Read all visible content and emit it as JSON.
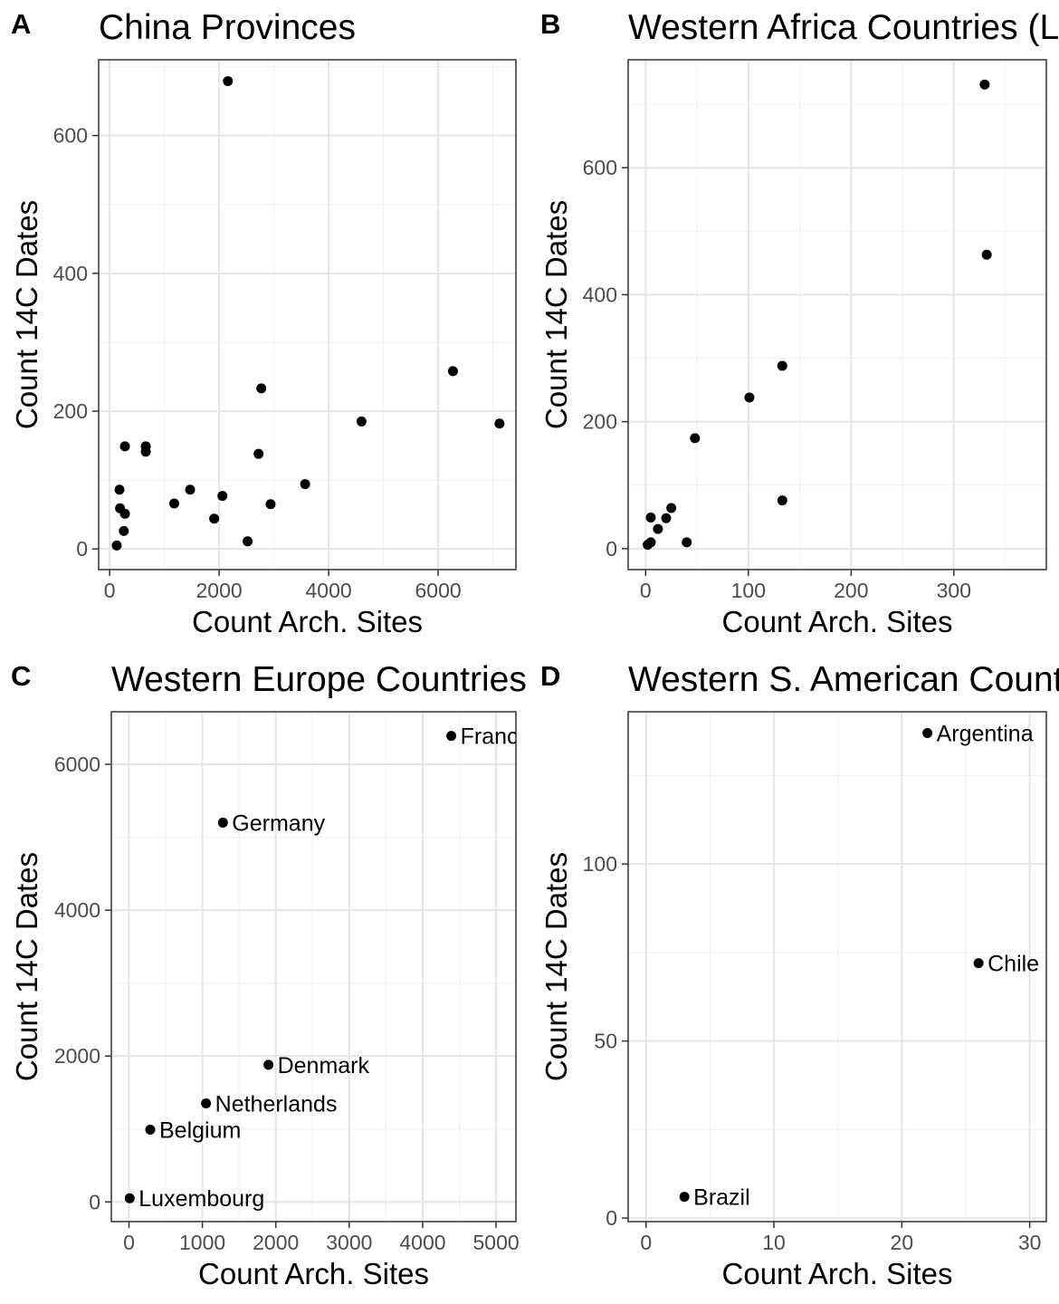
{
  "chart_data": [
    {
      "type": "scatter",
      "panel_letter": "A",
      "title": "China Provinces",
      "xlabel": "Count Arch. Sites",
      "ylabel": "Count 14C Dates",
      "xlim": [
        -200,
        7420
      ],
      "ylim": [
        -30,
        710
      ],
      "xticks": [
        0,
        2000,
        4000,
        6000
      ],
      "yticks": [
        0,
        200,
        400,
        600
      ],
      "grid": true,
      "points": [
        {
          "x": 2160,
          "y": 679
        },
        {
          "x": 6270,
          "y": 258
        },
        {
          "x": 2770,
          "y": 233
        },
        {
          "x": 4600,
          "y": 185
        },
        {
          "x": 7120,
          "y": 182
        },
        {
          "x": 280,
          "y": 149
        },
        {
          "x": 660,
          "y": 149
        },
        {
          "x": 660,
          "y": 141
        },
        {
          "x": 2720,
          "y": 138
        },
        {
          "x": 3570,
          "y": 94
        },
        {
          "x": 180,
          "y": 86
        },
        {
          "x": 1470,
          "y": 86
        },
        {
          "x": 2060,
          "y": 77
        },
        {
          "x": 1180,
          "y": 66
        },
        {
          "x": 2940,
          "y": 65
        },
        {
          "x": 190,
          "y": 59
        },
        {
          "x": 280,
          "y": 51
        },
        {
          "x": 1910,
          "y": 44
        },
        {
          "x": 260,
          "y": 26
        },
        {
          "x": 2520,
          "y": 11
        },
        {
          "x": 130,
          "y": 5
        }
      ]
    },
    {
      "type": "scatter",
      "panel_letter": "B",
      "title": "Western Africa Countries (L",
      "xlabel": "Count Arch. Sites",
      "ylabel": "Count 14C Dates",
      "xlim": [
        -17,
        390
      ],
      "ylim": [
        -33,
        770
      ],
      "xticks": [
        0,
        100,
        200,
        300
      ],
      "yticks": [
        0,
        200,
        400,
        600
      ],
      "grid": true,
      "points": [
        {
          "x": 330,
          "y": 731
        },
        {
          "x": 332,
          "y": 463
        },
        {
          "x": 133,
          "y": 288
        },
        {
          "x": 101,
          "y": 238
        },
        {
          "x": 48,
          "y": 174
        },
        {
          "x": 133,
          "y": 76
        },
        {
          "x": 25,
          "y": 64
        },
        {
          "x": 5,
          "y": 49
        },
        {
          "x": 20,
          "y": 48
        },
        {
          "x": 12,
          "y": 31
        },
        {
          "x": 40,
          "y": 10
        },
        {
          "x": 5,
          "y": 10
        },
        {
          "x": 2,
          "y": 6
        }
      ]
    },
    {
      "type": "scatter",
      "panel_letter": "C",
      "title": "Western Europe Countries",
      "xlabel": "Count Arch. Sites",
      "ylabel": "Count 14C Dates",
      "xlim": [
        -240,
        5270
      ],
      "ylim": [
        -270,
        6720
      ],
      "xticks": [
        0,
        1000,
        2000,
        3000,
        4000,
        5000
      ],
      "yticks": [
        0,
        2000,
        4000,
        6000
      ],
      "grid": true,
      "points": [
        {
          "x": 4390,
          "y": 6390,
          "label": "France"
        },
        {
          "x": 1280,
          "y": 5200,
          "label": "Germany"
        },
        {
          "x": 1900,
          "y": 1880,
          "label": "Denmark"
        },
        {
          "x": 1050,
          "y": 1350,
          "label": "Netherlands"
        },
        {
          "x": 290,
          "y": 990,
          "label": "Belgium"
        },
        {
          "x": 10,
          "y": 50,
          "label": "Luxembourg"
        }
      ]
    },
    {
      "type": "scatter",
      "panel_letter": "D",
      "title": "Western S. American Countries",
      "xlabel": "Count Arch. Sites",
      "ylabel": "Count 14C Dates",
      "xlim": [
        -1.4,
        31.3
      ],
      "ylim": [
        -1,
        143
      ],
      "xticks": [
        0,
        10,
        20,
        30
      ],
      "yticks": [
        0,
        50,
        100
      ],
      "grid": true,
      "points": [
        {
          "x": 22,
          "y": 137,
          "label": "Argentina"
        },
        {
          "x": 26,
          "y": 72,
          "label": "Chile"
        },
        {
          "x": 3,
          "y": 6,
          "label": "Brazil"
        }
      ]
    }
  ]
}
